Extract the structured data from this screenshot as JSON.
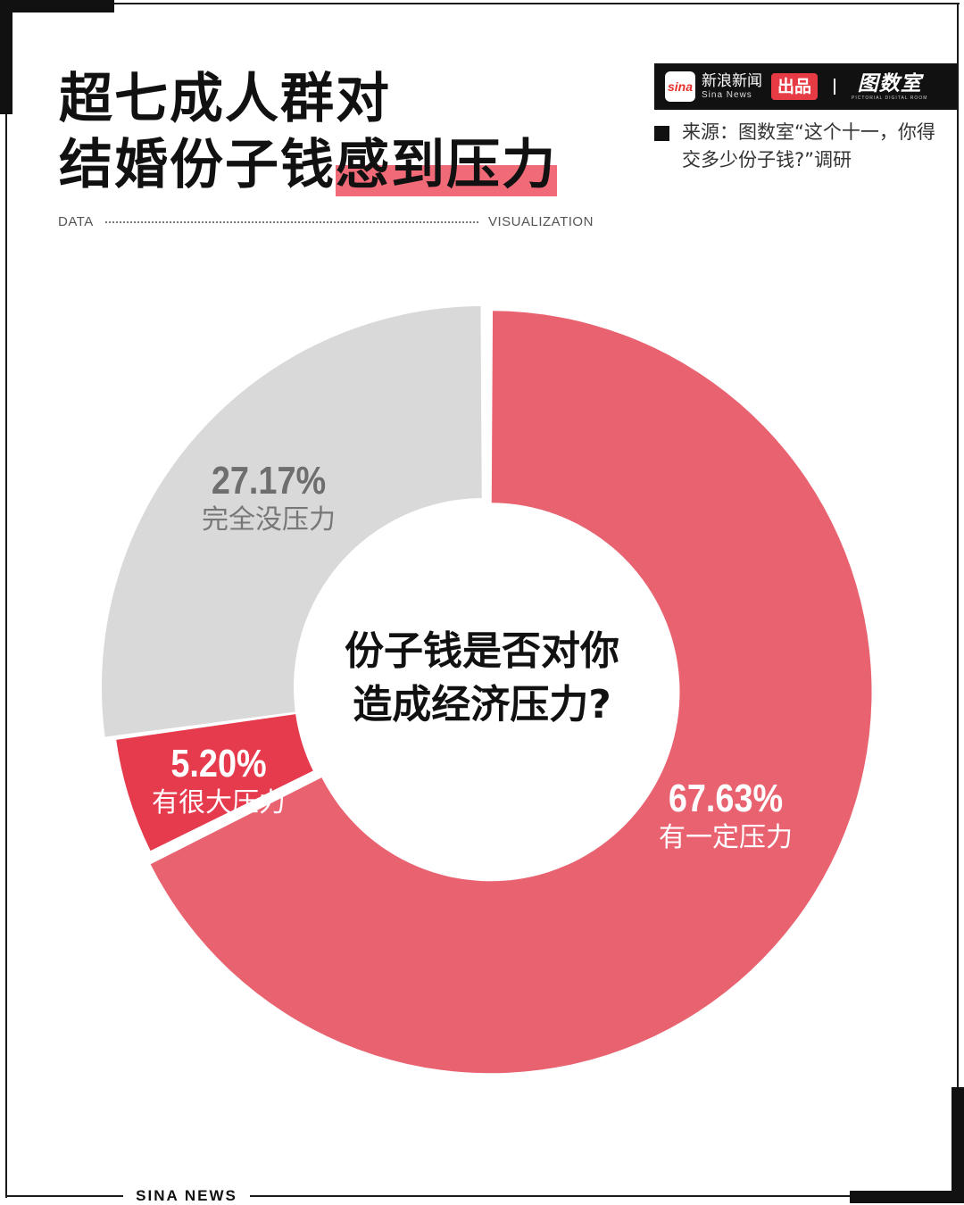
{
  "header": {
    "title_line1": "超七成人群对",
    "title_line2_plain": "结婚份子钱",
    "title_line2_highlight": "感到压力",
    "data_label": "DATA",
    "visualization_label": "VISUALIZATION"
  },
  "branding": {
    "sina_icon_text": "sina",
    "brand_cn": "新浪新闻",
    "brand_en": "Sina News",
    "produced_label": "出品",
    "separator": "|",
    "partner_cn": "图数室",
    "partner_en": "PICTORIAL DIGITAL ROOM"
  },
  "source": {
    "text": "来源：图数室“这个十一，你得交多少份子钱?”调研"
  },
  "center": {
    "line1": "份子钱是否对你",
    "line2": "造成经济压力?"
  },
  "labels": {
    "none_pct": "27.17%",
    "none_cat": "完全没压力",
    "big_pct": "5.20%",
    "big_cat": "有很大压力",
    "some_pct": "67.63%",
    "some_cat": "有一定压力"
  },
  "footer": {
    "text": "SINA NEWS"
  },
  "colors": {
    "some_pressure": "#e86270",
    "big_pressure": "#e63a4d",
    "no_pressure": "#d9d9d9",
    "title_highlight": "#f06a78"
  },
  "chart_data": {
    "type": "pie",
    "style": "donut",
    "title": "份子钱是否对你造成经济压力?",
    "categories": [
      "有一定压力",
      "有很大压力",
      "完全没压力"
    ],
    "values": [
      67.63,
      5.2,
      27.17
    ],
    "unit": "%",
    "highlighted_slice": "有一定压力"
  }
}
